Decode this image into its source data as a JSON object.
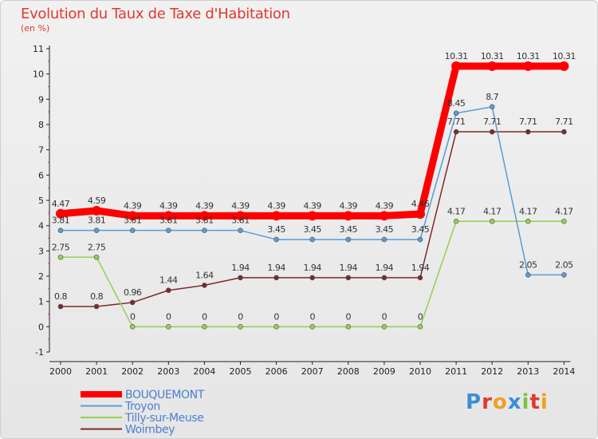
{
  "header": {
    "title": "Evolution du Taux de Taxe d'Habitation",
    "subtitle": "(en %)"
  },
  "logo": {
    "text": "Proxiti",
    "colors": [
      "#3a8fd6",
      "#e03a2e",
      "#f0a020",
      "#3a8fd6",
      "#7cc142",
      "#e03a2e",
      "#f0a020"
    ]
  },
  "chart_data": {
    "type": "line",
    "title": "Evolution du Taux de Taxe d'Habitation",
    "ylabel": "(en %)",
    "xlabel": "",
    "x": [
      "2000",
      "2001",
      "2002",
      "2003",
      "2004",
      "2005",
      "2006",
      "2007",
      "2008",
      "2009",
      "2010",
      "2011",
      "2012",
      "2013",
      "2014"
    ],
    "ylim": [
      -1,
      11
    ],
    "yticks": [
      "-1",
      "0",
      "1",
      "2",
      "3",
      "4",
      "5",
      "6",
      "7",
      "8",
      "9",
      "10",
      "11"
    ],
    "grid": false,
    "legend_position": "bottom-left",
    "series": [
      {
        "name": "BOUQUEMONT",
        "color": "#ff0000",
        "values": [
          4.47,
          4.59,
          4.39,
          4.39,
          4.39,
          4.39,
          4.39,
          4.39,
          4.39,
          4.39,
          4.46,
          10.31,
          10.31,
          10.31,
          10.31
        ],
        "labels": [
          "4.47",
          "4.59",
          "4.39",
          "4.39",
          "4.39",
          "4.39",
          "4.39",
          "4.39",
          "4.39",
          "4.39",
          "4.46",
          "10.31",
          "10.31",
          "10.31",
          "10.31"
        ]
      },
      {
        "name": "Troyon",
        "color": "#5b9bd5",
        "values": [
          3.81,
          3.81,
          3.81,
          3.81,
          3.81,
          3.81,
          3.45,
          3.45,
          3.45,
          3.45,
          3.45,
          8.45,
          8.7,
          2.05,
          2.05
        ],
        "labels": [
          "3.81",
          "3.81",
          "3.81",
          "3.81",
          "3.81",
          "3.81",
          "3.45",
          "3.45",
          "3.45",
          "3.45",
          "3.45",
          "8.45",
          "8.7",
          "2.05",
          "2.05"
        ]
      },
      {
        "name": "Tilly-sur-Meuse",
        "color": "#92d050",
        "values": [
          2.75,
          2.75,
          0,
          0,
          0,
          0,
          0,
          0,
          0,
          0,
          0,
          4.17,
          4.17,
          4.17,
          4.17
        ],
        "labels": [
          "2.75",
          "2.75",
          "0",
          "0",
          "0",
          "0",
          "0",
          "0",
          "0",
          "0",
          "0",
          "4.17",
          "4.17",
          "4.17",
          "4.17"
        ]
      },
      {
        "name": "Woimbey",
        "color": "#7b2a2a",
        "values": [
          0.8,
          0.8,
          0.96,
          1.44,
          1.64,
          1.94,
          1.94,
          1.94,
          1.94,
          1.94,
          1.94,
          7.71,
          7.71,
          7.71,
          7.71
        ],
        "labels": [
          "0.8",
          "0.8",
          "0.96",
          "1.44",
          "1.64",
          "1.94",
          "1.94",
          "1.94",
          "1.94",
          "1.94",
          "1.94",
          "7.71",
          "7.71",
          "7.71",
          "7.71"
        ]
      }
    ]
  }
}
